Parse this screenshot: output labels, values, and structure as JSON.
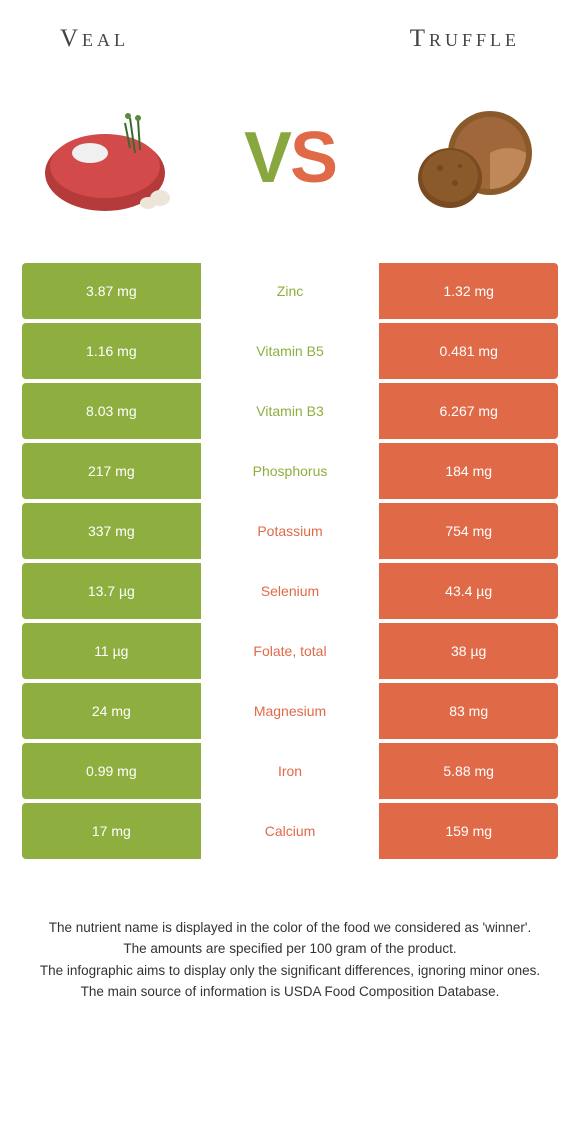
{
  "left_food": "Veal",
  "right_food": "Truffle",
  "vs": {
    "v": "V",
    "s": "S"
  },
  "colors": {
    "left": "#8eaf3f",
    "right": "#e06a48",
    "background": "#ffffff",
    "text": "#333333"
  },
  "rows": [
    {
      "left": "3.87 mg",
      "label": "Zinc",
      "right": "1.32 mg",
      "winner": "left"
    },
    {
      "left": "1.16 mg",
      "label": "Vitamin B5",
      "right": "0.481 mg",
      "winner": "left"
    },
    {
      "left": "8.03 mg",
      "label": "Vitamin B3",
      "right": "6.267 mg",
      "winner": "left"
    },
    {
      "left": "217 mg",
      "label": "Phosphorus",
      "right": "184 mg",
      "winner": "left"
    },
    {
      "left": "337 mg",
      "label": "Potassium",
      "right": "754 mg",
      "winner": "right"
    },
    {
      "left": "13.7 µg",
      "label": "Selenium",
      "right": "43.4 µg",
      "winner": "right"
    },
    {
      "left": "11 µg",
      "label": "Folate, total",
      "right": "38 µg",
      "winner": "right"
    },
    {
      "left": "24 mg",
      "label": "Magnesium",
      "right": "83 mg",
      "winner": "right"
    },
    {
      "left": "0.99 mg",
      "label": "Iron",
      "right": "5.88 mg",
      "winner": "right"
    },
    {
      "left": "17 mg",
      "label": "Calcium",
      "right": "159 mg",
      "winner": "right"
    }
  ],
  "footer": [
    "The nutrient name is displayed in the color of the food we considered as 'winner'.",
    "The amounts are specified per 100 gram of the product.",
    "The infographic aims to display only the significant differences, ignoring minor ones.",
    "The main source of information is USDA Food Composition Database."
  ]
}
